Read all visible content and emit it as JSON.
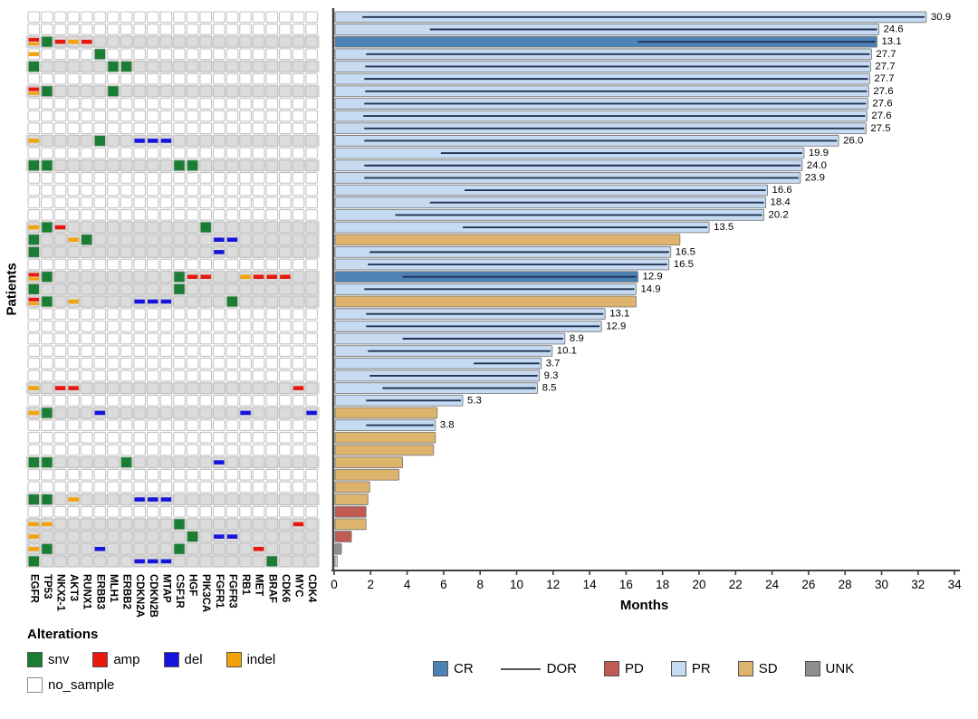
{
  "colors": {
    "snv": "#1b7d34",
    "amp": "#e9170c",
    "del": "#1513dc",
    "indel": "#f2a30c",
    "no_sample": "#ffffff",
    "stripe_gray": "#dcdcdc",
    "cell_border": "#c4c4c4",
    "CR": "#4c82b6",
    "PR": "#c6daf1",
    "SD": "#deb46c",
    "PD": "#c05b52",
    "UNK": "#8e8e8e",
    "UNK_faint": "#d6d6d6",
    "dor_line": "#1f3354",
    "bar_border": "#7d7d7d",
    "axis": "#3f3f3f"
  },
  "legend_alterations": {
    "title": "Alterations",
    "items": [
      {
        "key": "snv",
        "label": "snv"
      },
      {
        "key": "amp",
        "label": "amp"
      },
      {
        "key": "del",
        "label": "del"
      },
      {
        "key": "indel",
        "label": "indel"
      }
    ],
    "no_sample_label": "no_sample"
  },
  "legend_response": {
    "items": [
      {
        "key": "CR",
        "label": "CR",
        "glyph": "swatch"
      },
      {
        "key": "DOR",
        "label": "DOR",
        "glyph": "line"
      },
      {
        "key": "PD",
        "label": "PD",
        "glyph": "swatch"
      },
      {
        "key": "PR",
        "label": "PR",
        "glyph": "swatch"
      },
      {
        "key": "SD",
        "label": "SD",
        "glyph": "swatch"
      },
      {
        "key": "UNK",
        "label": "UNK",
        "glyph": "swatch"
      }
    ]
  },
  "chart_data": [
    {
      "type": "heatmap",
      "title": "oncoprint",
      "ylabel": "Patients",
      "genes": [
        "EGFR",
        "TP53",
        "NKX2-1",
        "AKT3",
        "RUNX1",
        "ERBB3",
        "MLH1",
        "ERBB2",
        "CDKN2A",
        "CDKN2B",
        "MTAP",
        "CSF1R",
        "HGF",
        "PIK3CA",
        "FGFR1",
        "FGFR3",
        "RB1",
        "MET",
        "BRAF",
        "CDK6",
        "MYC",
        "CDK4"
      ],
      "alteration_types": [
        "snv",
        "amp",
        "del",
        "indel",
        "no_sample"
      ],
      "rows": [
        {
          "bg": "white",
          "cells": []
        },
        {
          "bg": "white",
          "cells": []
        },
        {
          "bg": "gray",
          "cells": [
            [
              "EGFR",
              "amp"
            ],
            [
              "EGFR",
              "indel"
            ],
            [
              "TP53",
              "snv"
            ],
            [
              "NKX2-1",
              "amp"
            ],
            [
              "AKT3",
              "indel"
            ],
            [
              "RUNX1",
              "amp"
            ]
          ]
        },
        {
          "bg": "white",
          "cells": [
            [
              "EGFR",
              "indel"
            ],
            [
              "ERBB3",
              "snv"
            ]
          ]
        },
        {
          "bg": "gray",
          "cells": [
            [
              "EGFR",
              "snv"
            ],
            [
              "MLH1",
              "snv"
            ],
            [
              "ERBB2",
              "snv"
            ]
          ]
        },
        {
          "bg": "white",
          "cells": []
        },
        {
          "bg": "gray",
          "cells": [
            [
              "EGFR",
              "amp"
            ],
            [
              "EGFR",
              "indel"
            ],
            [
              "TP53",
              "snv"
            ],
            [
              "MLH1",
              "snv"
            ]
          ]
        },
        {
          "bg": "white",
          "cells": []
        },
        {
          "bg": "white",
          "cells": []
        },
        {
          "bg": "white",
          "cells": []
        },
        {
          "bg": "gray",
          "cells": [
            [
              "EGFR",
              "indel"
            ],
            [
              "ERBB3",
              "snv"
            ],
            [
              "CDKN2A",
              "del"
            ],
            [
              "CDKN2B",
              "del"
            ],
            [
              "MTAP",
              "del"
            ]
          ]
        },
        {
          "bg": "white",
          "cells": []
        },
        {
          "bg": "gray",
          "cells": [
            [
              "EGFR",
              "snv"
            ],
            [
              "TP53",
              "snv"
            ],
            [
              "CSF1R",
              "snv"
            ],
            [
              "HGF",
              "snv"
            ]
          ]
        },
        {
          "bg": "white",
          "cells": []
        },
        {
          "bg": "white",
          "cells": []
        },
        {
          "bg": "white",
          "cells": []
        },
        {
          "bg": "white",
          "cells": []
        },
        {
          "bg": "gray",
          "cells": [
            [
              "EGFR",
              "indel"
            ],
            [
              "TP53",
              "snv"
            ],
            [
              "NKX2-1",
              "amp"
            ],
            [
              "PIK3CA",
              "snv"
            ]
          ]
        },
        {
          "bg": "gray",
          "cells": [
            [
              "EGFR",
              "snv"
            ],
            [
              "AKT3",
              "indel"
            ],
            [
              "RUNX1",
              "snv"
            ],
            [
              "FGFR1",
              "del"
            ],
            [
              "FGFR3",
              "del"
            ]
          ]
        },
        {
          "bg": "gray",
          "cells": [
            [
              "EGFR",
              "snv"
            ],
            [
              "FGFR1",
              "del"
            ]
          ]
        },
        {
          "bg": "white",
          "cells": []
        },
        {
          "bg": "gray",
          "cells": [
            [
              "EGFR",
              "amp"
            ],
            [
              "EGFR",
              "indel"
            ],
            [
              "TP53",
              "snv"
            ],
            [
              "CSF1R",
              "snv"
            ],
            [
              "HGF",
              "amp"
            ],
            [
              "PIK3CA",
              "amp"
            ],
            [
              "RB1",
              "indel"
            ],
            [
              "MET",
              "amp"
            ],
            [
              "BRAF",
              "amp"
            ],
            [
              "CDK6",
              "amp"
            ]
          ]
        },
        {
          "bg": "gray",
          "cells": [
            [
              "EGFR",
              "snv"
            ],
            [
              "CSF1R",
              "snv"
            ]
          ]
        },
        {
          "bg": "gray",
          "cells": [
            [
              "EGFR",
              "amp"
            ],
            [
              "EGFR",
              "indel"
            ],
            [
              "TP53",
              "snv"
            ],
            [
              "AKT3",
              "indel"
            ],
            [
              "CDKN2A",
              "del"
            ],
            [
              "CDKN2B",
              "del"
            ],
            [
              "MTAP",
              "del"
            ],
            [
              "FGFR3",
              "snv"
            ]
          ]
        },
        {
          "bg": "white",
          "cells": []
        },
        {
          "bg": "white",
          "cells": []
        },
        {
          "bg": "white",
          "cells": []
        },
        {
          "bg": "white",
          "cells": []
        },
        {
          "bg": "white",
          "cells": []
        },
        {
          "bg": "white",
          "cells": []
        },
        {
          "bg": "gray",
          "cells": [
            [
              "EGFR",
              "indel"
            ],
            [
              "NKX2-1",
              "amp"
            ],
            [
              "AKT3",
              "amp"
            ],
            [
              "MYC",
              "amp"
            ]
          ]
        },
        {
          "bg": "white",
          "cells": []
        },
        {
          "bg": "gray",
          "cells": [
            [
              "EGFR",
              "indel"
            ],
            [
              "TP53",
              "snv"
            ],
            [
              "ERBB3",
              "del"
            ],
            [
              "RB1",
              "del"
            ],
            [
              "CDK4",
              "del"
            ]
          ]
        },
        {
          "bg": "white",
          "cells": []
        },
        {
          "bg": "white",
          "cells": []
        },
        {
          "bg": "white",
          "cells": []
        },
        {
          "bg": "gray",
          "cells": [
            [
              "EGFR",
              "snv"
            ],
            [
              "TP53",
              "snv"
            ],
            [
              "ERBB2",
              "snv"
            ],
            [
              "FGFR1",
              "del"
            ]
          ]
        },
        {
          "bg": "white",
          "cells": []
        },
        {
          "bg": "white",
          "cells": []
        },
        {
          "bg": "gray",
          "cells": [
            [
              "EGFR",
              "snv"
            ],
            [
              "TP53",
              "snv"
            ],
            [
              "AKT3",
              "indel"
            ],
            [
              "CDKN2A",
              "del"
            ],
            [
              "CDKN2B",
              "del"
            ],
            [
              "MTAP",
              "del"
            ]
          ]
        },
        {
          "bg": "white",
          "cells": []
        },
        {
          "bg": "gray",
          "cells": [
            [
              "EGFR",
              "indel"
            ],
            [
              "TP53",
              "indel"
            ],
            [
              "CSF1R",
              "snv"
            ],
            [
              "MYC",
              "amp"
            ]
          ]
        },
        {
          "bg": "gray",
          "cells": [
            [
              "EGFR",
              "indel"
            ],
            [
              "HGF",
              "snv"
            ],
            [
              "FGFR1",
              "del"
            ],
            [
              "FGFR3",
              "del"
            ]
          ]
        },
        {
          "bg": "gray",
          "cells": [
            [
              "EGFR",
              "indel"
            ],
            [
              "TP53",
              "snv"
            ],
            [
              "ERBB3",
              "del"
            ],
            [
              "CSF1R",
              "snv"
            ],
            [
              "MET",
              "amp"
            ]
          ]
        },
        {
          "bg": "gray",
          "cells": [
            [
              "EGFR",
              "snv"
            ],
            [
              "CDKN2A",
              "del"
            ],
            [
              "CDKN2B",
              "del"
            ],
            [
              "MTAP",
              "del"
            ],
            [
              "BRAF",
              "snv"
            ]
          ]
        }
      ]
    },
    {
      "type": "bar",
      "orientation": "horizontal",
      "xlabel": "Months",
      "xlim": [
        0,
        34
      ],
      "xticks": [
        0,
        2,
        4,
        6,
        8,
        10,
        12,
        14,
        16,
        18,
        20,
        22,
        24,
        26,
        28,
        30,
        32,
        34
      ],
      "legend_entries": [
        "CR",
        "DOR",
        "PD",
        "PR",
        "SD",
        "UNK"
      ],
      "bars": [
        {
          "patient": 1,
          "response": "PR",
          "months": 32.4,
          "dor": 30.9,
          "dor_label": "30.9"
        },
        {
          "patient": 2,
          "response": "PR",
          "months": 29.8,
          "dor": 24.6,
          "dor_label": "24.6"
        },
        {
          "patient": 3,
          "response": "CR",
          "months": 29.7,
          "dor": 13.1,
          "dor_label": "13.1"
        },
        {
          "patient": 4,
          "response": "PR",
          "months": 29.4,
          "dor": 27.7,
          "dor_label": "27.7"
        },
        {
          "patient": 5,
          "response": "PR",
          "months": 29.35,
          "dor": 27.7,
          "dor_label": "27.7"
        },
        {
          "patient": 6,
          "response": "PR",
          "months": 29.3,
          "dor": 27.7,
          "dor_label": "27.7"
        },
        {
          "patient": 7,
          "response": "PR",
          "months": 29.25,
          "dor": 27.6,
          "dor_label": "27.6"
        },
        {
          "patient": 8,
          "response": "PR",
          "months": 29.2,
          "dor": 27.6,
          "dor_label": "27.6"
        },
        {
          "patient": 9,
          "response": "PR",
          "months": 29.15,
          "dor": 27.6,
          "dor_label": "27.6"
        },
        {
          "patient": 10,
          "response": "PR",
          "months": 29.1,
          "dor": 27.5,
          "dor_label": "27.5"
        },
        {
          "patient": 11,
          "response": "PR",
          "months": 27.6,
          "dor": 26.0,
          "dor_label": "26.0"
        },
        {
          "patient": 12,
          "response": "PR",
          "months": 25.7,
          "dor": 19.9,
          "dor_label": "19.9"
        },
        {
          "patient": 13,
          "response": "PR",
          "months": 25.6,
          "dor": 24.0,
          "dor_label": "24.0"
        },
        {
          "patient": 14,
          "response": "PR",
          "months": 25.5,
          "dor": 23.9,
          "dor_label": "23.9"
        },
        {
          "patient": 15,
          "response": "PR",
          "months": 23.7,
          "dor": 16.6,
          "dor_label": "16.6"
        },
        {
          "patient": 16,
          "response": "PR",
          "months": 23.6,
          "dor": 18.4,
          "dor_label": "18.4"
        },
        {
          "patient": 17,
          "response": "PR",
          "months": 23.5,
          "dor": 20.2,
          "dor_label": "20.2"
        },
        {
          "patient": 18,
          "response": "PR",
          "months": 20.5,
          "dor": 13.5,
          "dor_label": "13.5"
        },
        {
          "patient": 19,
          "response": "SD",
          "months": 18.9,
          "dor": null,
          "dor_label": null
        },
        {
          "patient": 20,
          "response": "PR",
          "months": 18.4,
          "dor": 16.5,
          "dor_label": "16.5"
        },
        {
          "patient": 21,
          "response": "PR",
          "months": 18.3,
          "dor": 16.5,
          "dor_label": "16.5"
        },
        {
          "patient": 22,
          "response": "CR",
          "months": 16.6,
          "dor": 12.9,
          "dor_label": "12.9"
        },
        {
          "patient": 23,
          "response": "PR",
          "months": 16.5,
          "dor": 14.9,
          "dor_label": "14.9"
        },
        {
          "patient": 24,
          "response": "SD",
          "months": 16.5,
          "dor": null,
          "dor_label": null
        },
        {
          "patient": 25,
          "response": "PR",
          "months": 14.8,
          "dor": 13.1,
          "dor_label": "13.1"
        },
        {
          "patient": 26,
          "response": "PR",
          "months": 14.6,
          "dor": 12.9,
          "dor_label": "12.9"
        },
        {
          "patient": 27,
          "response": "PR",
          "months": 12.6,
          "dor": 8.9,
          "dor_label": "8.9"
        },
        {
          "patient": 28,
          "response": "PR",
          "months": 11.9,
          "dor": 10.1,
          "dor_label": "10.1"
        },
        {
          "patient": 29,
          "response": "PR",
          "months": 11.3,
          "dor": 3.7,
          "dor_label": "3.7"
        },
        {
          "patient": 30,
          "response": "PR",
          "months": 11.2,
          "dor": 9.3,
          "dor_label": "9.3"
        },
        {
          "patient": 31,
          "response": "PR",
          "months": 11.1,
          "dor": 8.5,
          "dor_label": "8.5"
        },
        {
          "patient": 32,
          "response": "PR",
          "months": 7.0,
          "dor": 5.3,
          "dor_label": "5.3"
        },
        {
          "patient": 33,
          "response": "SD",
          "months": 5.6,
          "dor": null,
          "dor_label": null
        },
        {
          "patient": 34,
          "response": "PR",
          "months": 5.5,
          "dor": 3.8,
          "dor_label": "3.8"
        },
        {
          "patient": 35,
          "response": "SD",
          "months": 5.5,
          "dor": null,
          "dor_label": null
        },
        {
          "patient": 36,
          "response": "SD",
          "months": 5.4,
          "dor": null,
          "dor_label": null
        },
        {
          "patient": 37,
          "response": "SD",
          "months": 3.7,
          "dor": null,
          "dor_label": null
        },
        {
          "patient": 38,
          "response": "SD",
          "months": 3.5,
          "dor": null,
          "dor_label": null
        },
        {
          "patient": 39,
          "response": "SD",
          "months": 1.9,
          "dor": null,
          "dor_label": null
        },
        {
          "patient": 40,
          "response": "SD",
          "months": 1.8,
          "dor": null,
          "dor_label": null
        },
        {
          "patient": 41,
          "response": "PD",
          "months": 1.7,
          "dor": null,
          "dor_label": null
        },
        {
          "patient": 42,
          "response": "SD",
          "months": 1.7,
          "dor": null,
          "dor_label": null
        },
        {
          "patient": 43,
          "response": "PD",
          "months": 0.9,
          "dor": null,
          "dor_label": null
        },
        {
          "patient": 44,
          "response": "UNK",
          "months": 0.35,
          "dor": null,
          "dor_label": null
        },
        {
          "patient": 45,
          "response": "UNK",
          "months": 0.12,
          "dor": null,
          "dor_label": null,
          "faint": true
        }
      ]
    }
  ]
}
